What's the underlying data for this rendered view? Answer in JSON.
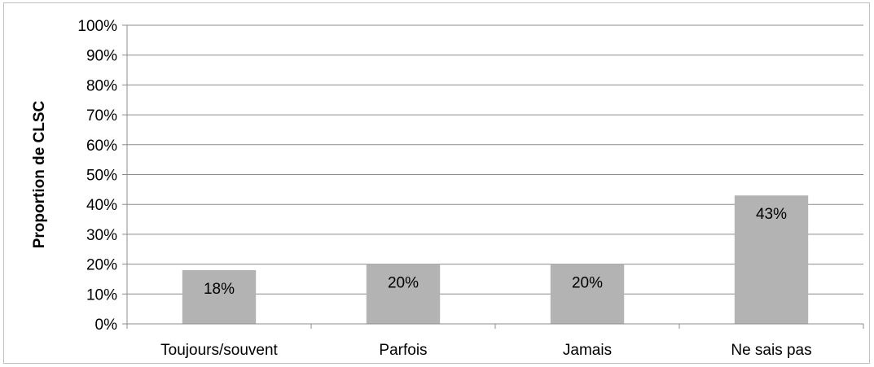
{
  "chart_data": {
    "type": "bar",
    "title": "",
    "xlabel": "",
    "ylabel": "Proportion de CLSC",
    "categories": [
      "Toujours/souvent",
      "Parfois",
      "Jamais",
      "Ne sais pas"
    ],
    "values": [
      18,
      20,
      20,
      43
    ],
    "data_labels": [
      "18%",
      "20%",
      "20%",
      "43%"
    ],
    "ylim": [
      0,
      100
    ],
    "yticks": [
      0,
      10,
      20,
      30,
      40,
      50,
      60,
      70,
      80,
      90,
      100
    ],
    "ytick_labels": [
      "0%",
      "10%",
      "20%",
      "30%",
      "40%",
      "50%",
      "60%",
      "70%",
      "80%",
      "90%",
      "100%"
    ],
    "grid": true,
    "legend": "none",
    "bar_color": "#b3b3b3",
    "grid_color": "#8c8c8c"
  }
}
